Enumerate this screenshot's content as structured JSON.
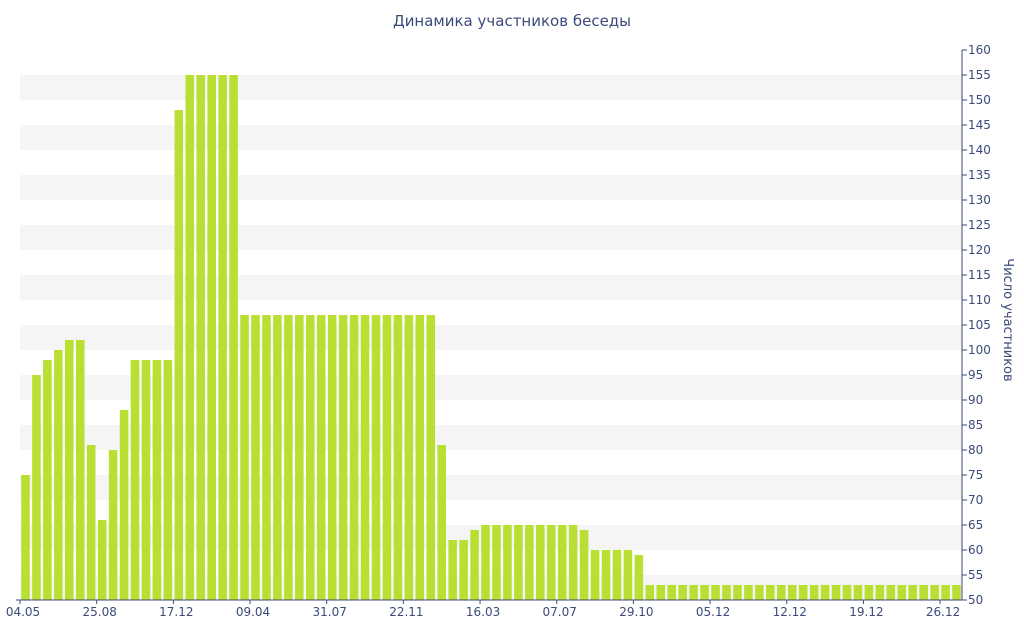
{
  "chart_data": {
    "type": "bar",
    "title": "Динамика участников беседы",
    "xlabel": "",
    "ylabel": "Число участников",
    "ylim": [
      50,
      160
    ],
    "y_ticks": [
      50,
      55,
      60,
      65,
      70,
      75,
      80,
      85,
      90,
      95,
      100,
      105,
      110,
      115,
      120,
      125,
      130,
      135,
      140,
      145,
      150,
      155,
      160
    ],
    "x_tick_labels": [
      "04.05",
      "25.08",
      "17.12",
      "09.04",
      "31.07",
      "22.11",
      "16.03",
      "07.07",
      "29.10",
      "05.12",
      "12.12",
      "19.12",
      "26.12"
    ],
    "x_tick_positions": [
      0,
      7,
      14,
      21,
      28,
      35,
      42,
      49,
      56,
      63,
      70,
      77,
      84
    ],
    "grid": "alternating horizontal bands",
    "bar_color": "#b9df33",
    "values": [
      75,
      95,
      98,
      100,
      102,
      102,
      81,
      66,
      80,
      88,
      98,
      98,
      98,
      98,
      148,
      155,
      155,
      155,
      155,
      155,
      107,
      107,
      107,
      107,
      107,
      107,
      107,
      107,
      107,
      107,
      107,
      107,
      107,
      107,
      107,
      107,
      107,
      107,
      81,
      62,
      62,
      64,
      65,
      65,
      65,
      65,
      65,
      65,
      65,
      65,
      65,
      64,
      60,
      60,
      60,
      60,
      59,
      53,
      53,
      53,
      53,
      53,
      53,
      53,
      53,
      53,
      53,
      53,
      53,
      53,
      53,
      53,
      53,
      53,
      53,
      53,
      53,
      53,
      53,
      53,
      53,
      53,
      53,
      53,
      53,
      53
    ]
  }
}
